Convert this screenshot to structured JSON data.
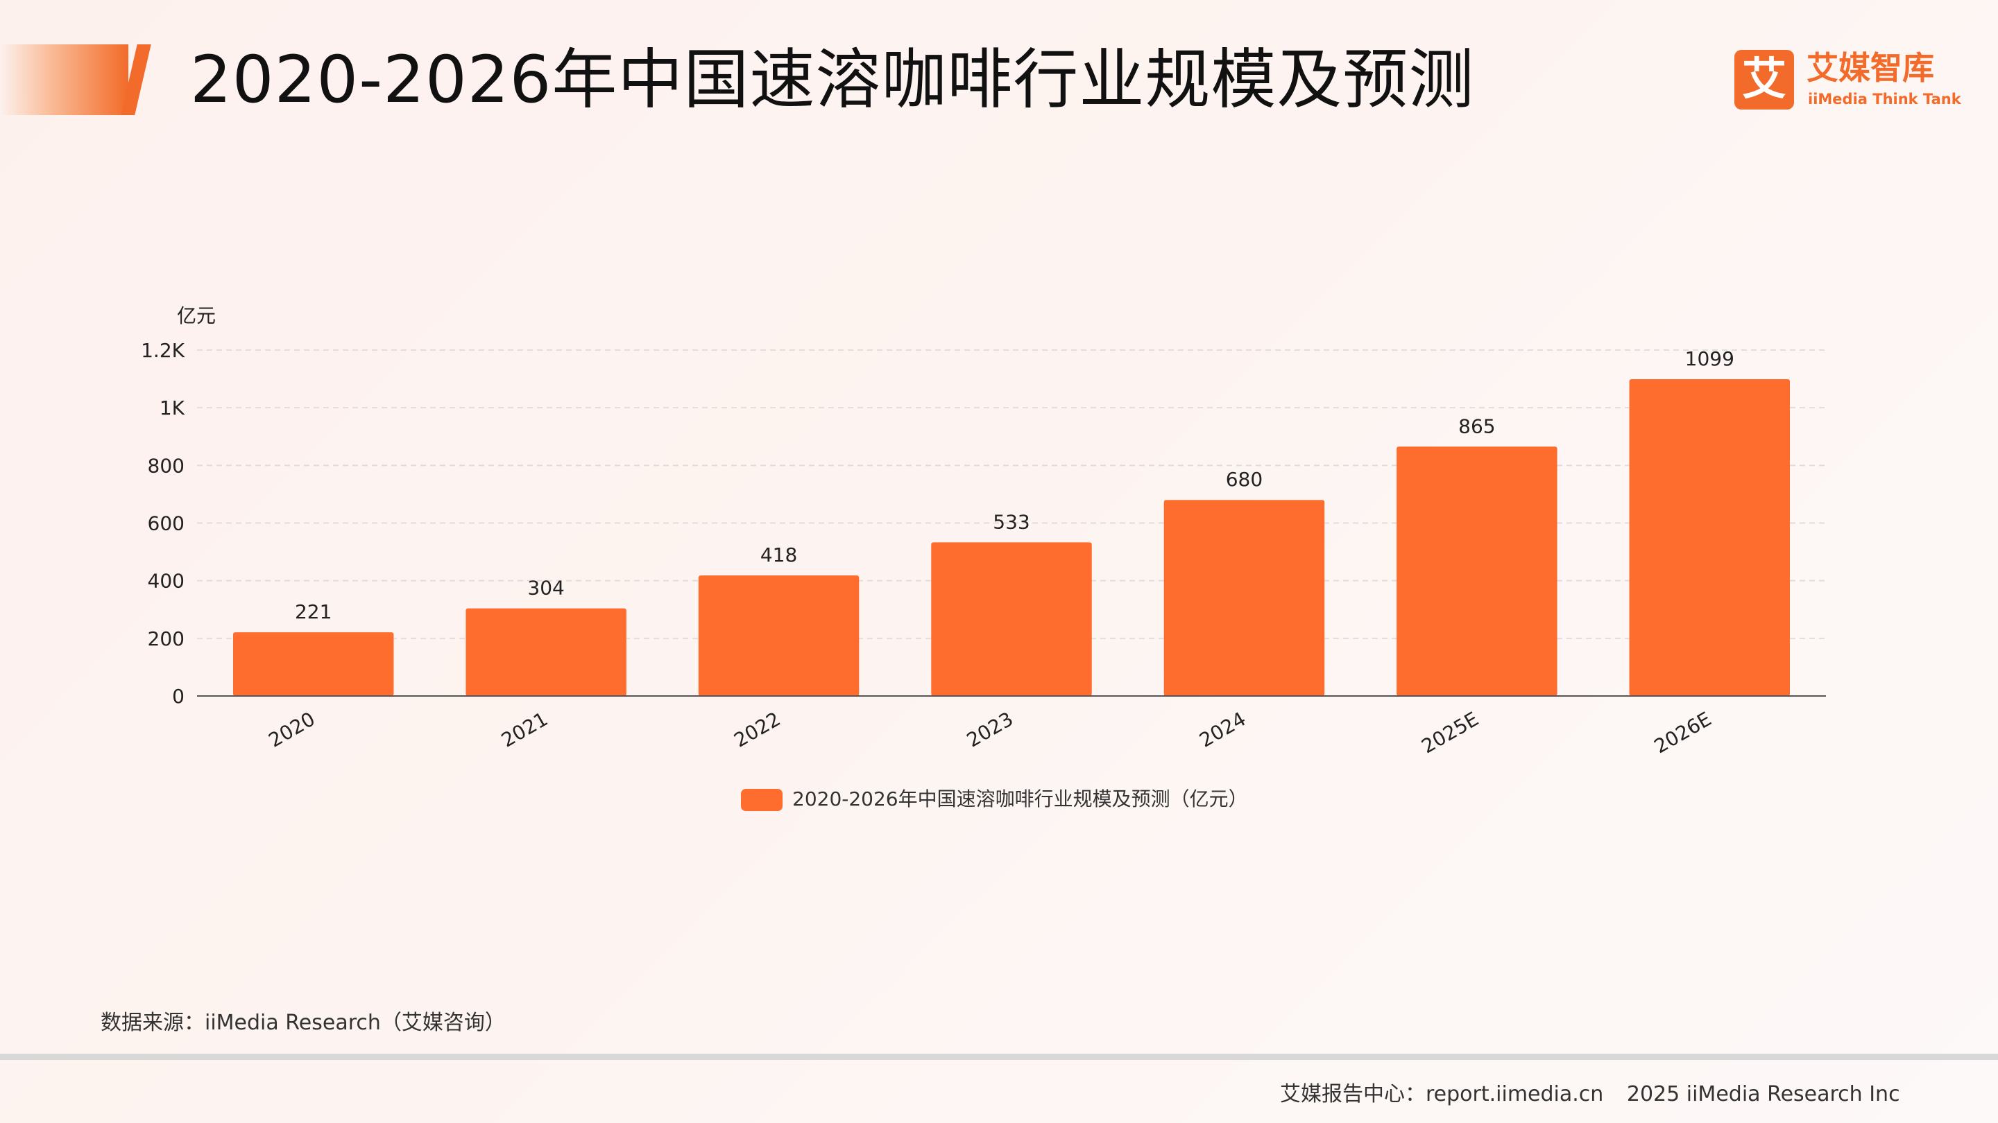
{
  "header": {
    "title": "2020-2026年中国速溶咖啡行业规模及预测"
  },
  "logo": {
    "mark": "艾",
    "name_cn": "艾媒智库",
    "name_en": "iiMedia Think Tank",
    "icon": "iimedia-logo-icon"
  },
  "chart_data": {
    "type": "bar",
    "categories": [
      "2020",
      "2021",
      "2022",
      "2023",
      "2024",
      "2025E",
      "2026E"
    ],
    "series": [
      {
        "name": "2020-2026年中国速溶咖啡行业规模及预测（亿元）",
        "values": [
          221,
          304,
          418,
          533,
          680,
          865,
          1099
        ],
        "color": "#ff6d2e"
      }
    ],
    "data_labels": [
      "221",
      "304",
      "418",
      "533",
      "680",
      "865",
      "1099"
    ],
    "unit_label": "亿元",
    "ylim": [
      0,
      1200
    ],
    "yticks": [
      0,
      200,
      400,
      600,
      800,
      1000,
      1200
    ],
    "ytick_labels": [
      "0",
      "200",
      "400",
      "600",
      "800",
      "1K",
      "1.2K"
    ],
    "grid": true,
    "legend": "bottom-center",
    "colors": {
      "bar": "#ff6d2e",
      "axis": "#555555",
      "grid": "#e3dcdc",
      "text": "#222222"
    }
  },
  "footer": {
    "source": "数据来源：iiMedia Research（艾媒咨询）",
    "report_center": "艾媒报告中心：report.iimedia.cn",
    "copyright": "2025 iiMedia Research Inc"
  },
  "colors": {
    "accent": "#f26b2a"
  }
}
